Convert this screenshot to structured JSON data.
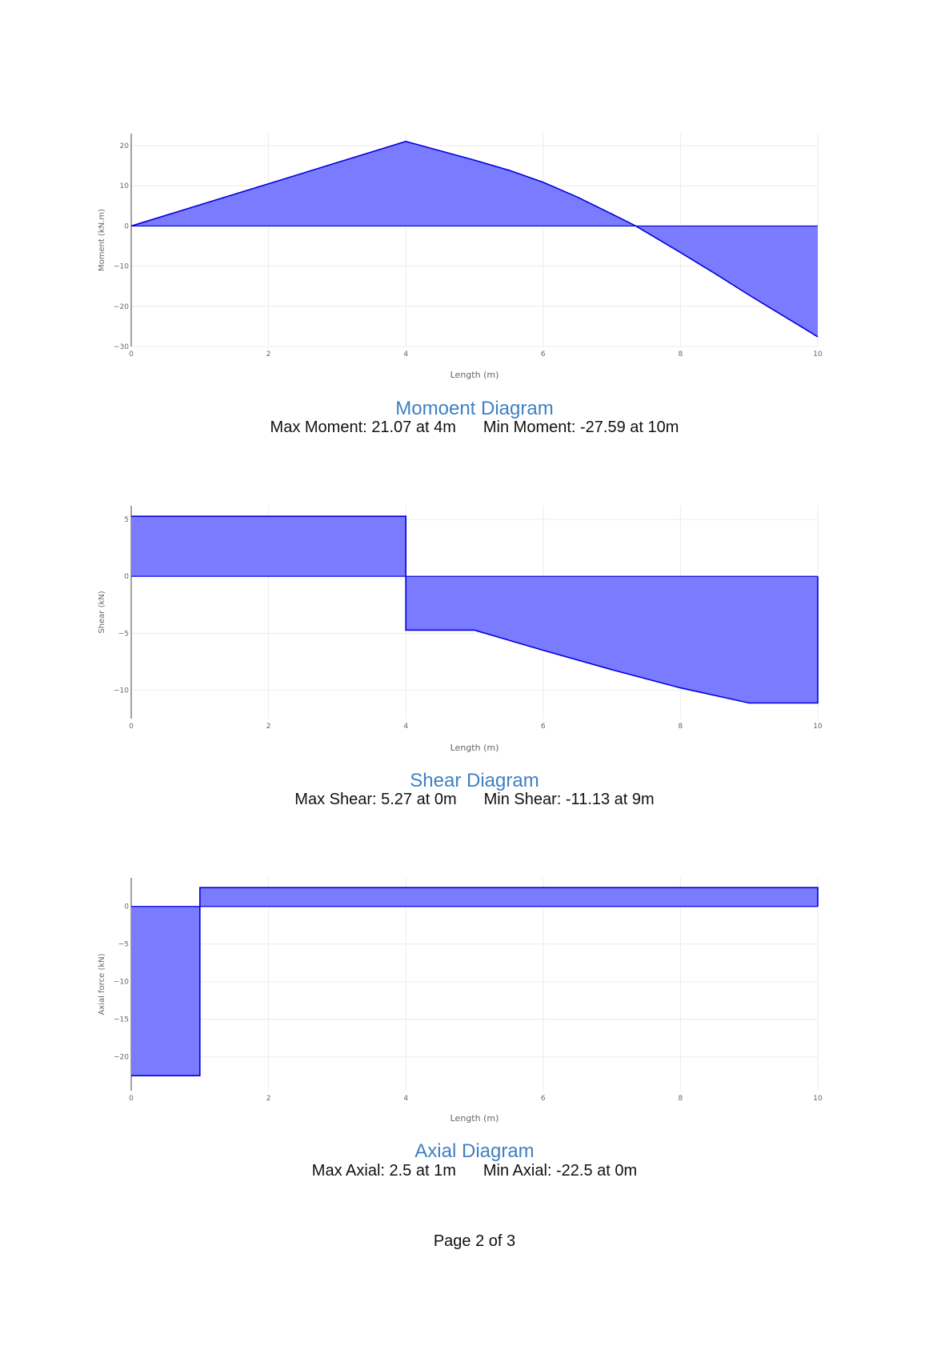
{
  "colors": {
    "fill": "#7b7bff",
    "line": "#0000e0",
    "grid": "#ececec",
    "title": "#3f80c4",
    "axis_text": "#666666"
  },
  "charts": [
    {
      "title": "Momoent Diagram",
      "max_text": "Max Moment: 21.07 at 4m",
      "min_text": "Min Moment: -27.59 at 10m"
    },
    {
      "title": "Shear Diagram",
      "max_text": "Max Shear: 5.27 at 0m",
      "min_text": "Min Shear: -11.13 at 9m"
    },
    {
      "title": "Axial Diagram",
      "max_text": "Max Axial: 2.5 at 1m",
      "min_text": "Min Axial: -22.5 at 0m"
    }
  ],
  "footer": {
    "page_label": "Page 2 of 3"
  },
  "chart_data": [
    {
      "type": "area",
      "xlabel": "Length (m)",
      "ylabel": "Moment (kN.m)",
      "xlim": [
        0,
        10
      ],
      "ylim": [
        -30,
        23
      ],
      "xticks": [
        0,
        2,
        4,
        6,
        8,
        10
      ],
      "yticks": [
        20,
        10,
        0,
        -10,
        -20,
        -30
      ],
      "grid": true,
      "x": [
        0,
        1,
        2,
        3,
        4,
        5,
        5.5,
        6,
        6.5,
        7,
        7.35,
        8,
        8.5,
        9,
        9.5,
        10
      ],
      "y": [
        0,
        5.27,
        10.53,
        15.8,
        21.07,
        16.4,
        13.9,
        10.9,
        7.2,
        3.0,
        0,
        -6.6,
        -11.8,
        -17.2,
        -22.4,
        -27.59
      ]
    },
    {
      "type": "area",
      "xlabel": "Length (m)",
      "ylabel": "Shear (kN)",
      "xlim": [
        0,
        10
      ],
      "ylim": [
        -12.5,
        6.2
      ],
      "xticks": [
        0,
        2,
        4,
        6,
        8,
        10
      ],
      "yticks": [
        5,
        0,
        -5,
        -10
      ],
      "grid": true,
      "x": [
        0,
        4,
        4,
        5,
        6,
        7,
        8,
        9,
        10,
        10
      ],
      "y": [
        5.27,
        5.27,
        -4.73,
        -4.73,
        -6.5,
        -8.2,
        -9.8,
        -11.13,
        -11.13,
        0
      ]
    },
    {
      "type": "area",
      "xlabel": "Length (m)",
      "ylabel": "Axial force (kN)",
      "xlim": [
        0,
        10
      ],
      "ylim": [
        -24.5,
        3.8
      ],
      "xticks": [
        0,
        2,
        4,
        6,
        8,
        10
      ],
      "yticks": [
        0,
        -5,
        -10,
        -15,
        -20
      ],
      "grid": true,
      "x": [
        0,
        1,
        1,
        10,
        10
      ],
      "y": [
        -22.5,
        -22.5,
        2.5,
        2.5,
        0
      ]
    }
  ]
}
